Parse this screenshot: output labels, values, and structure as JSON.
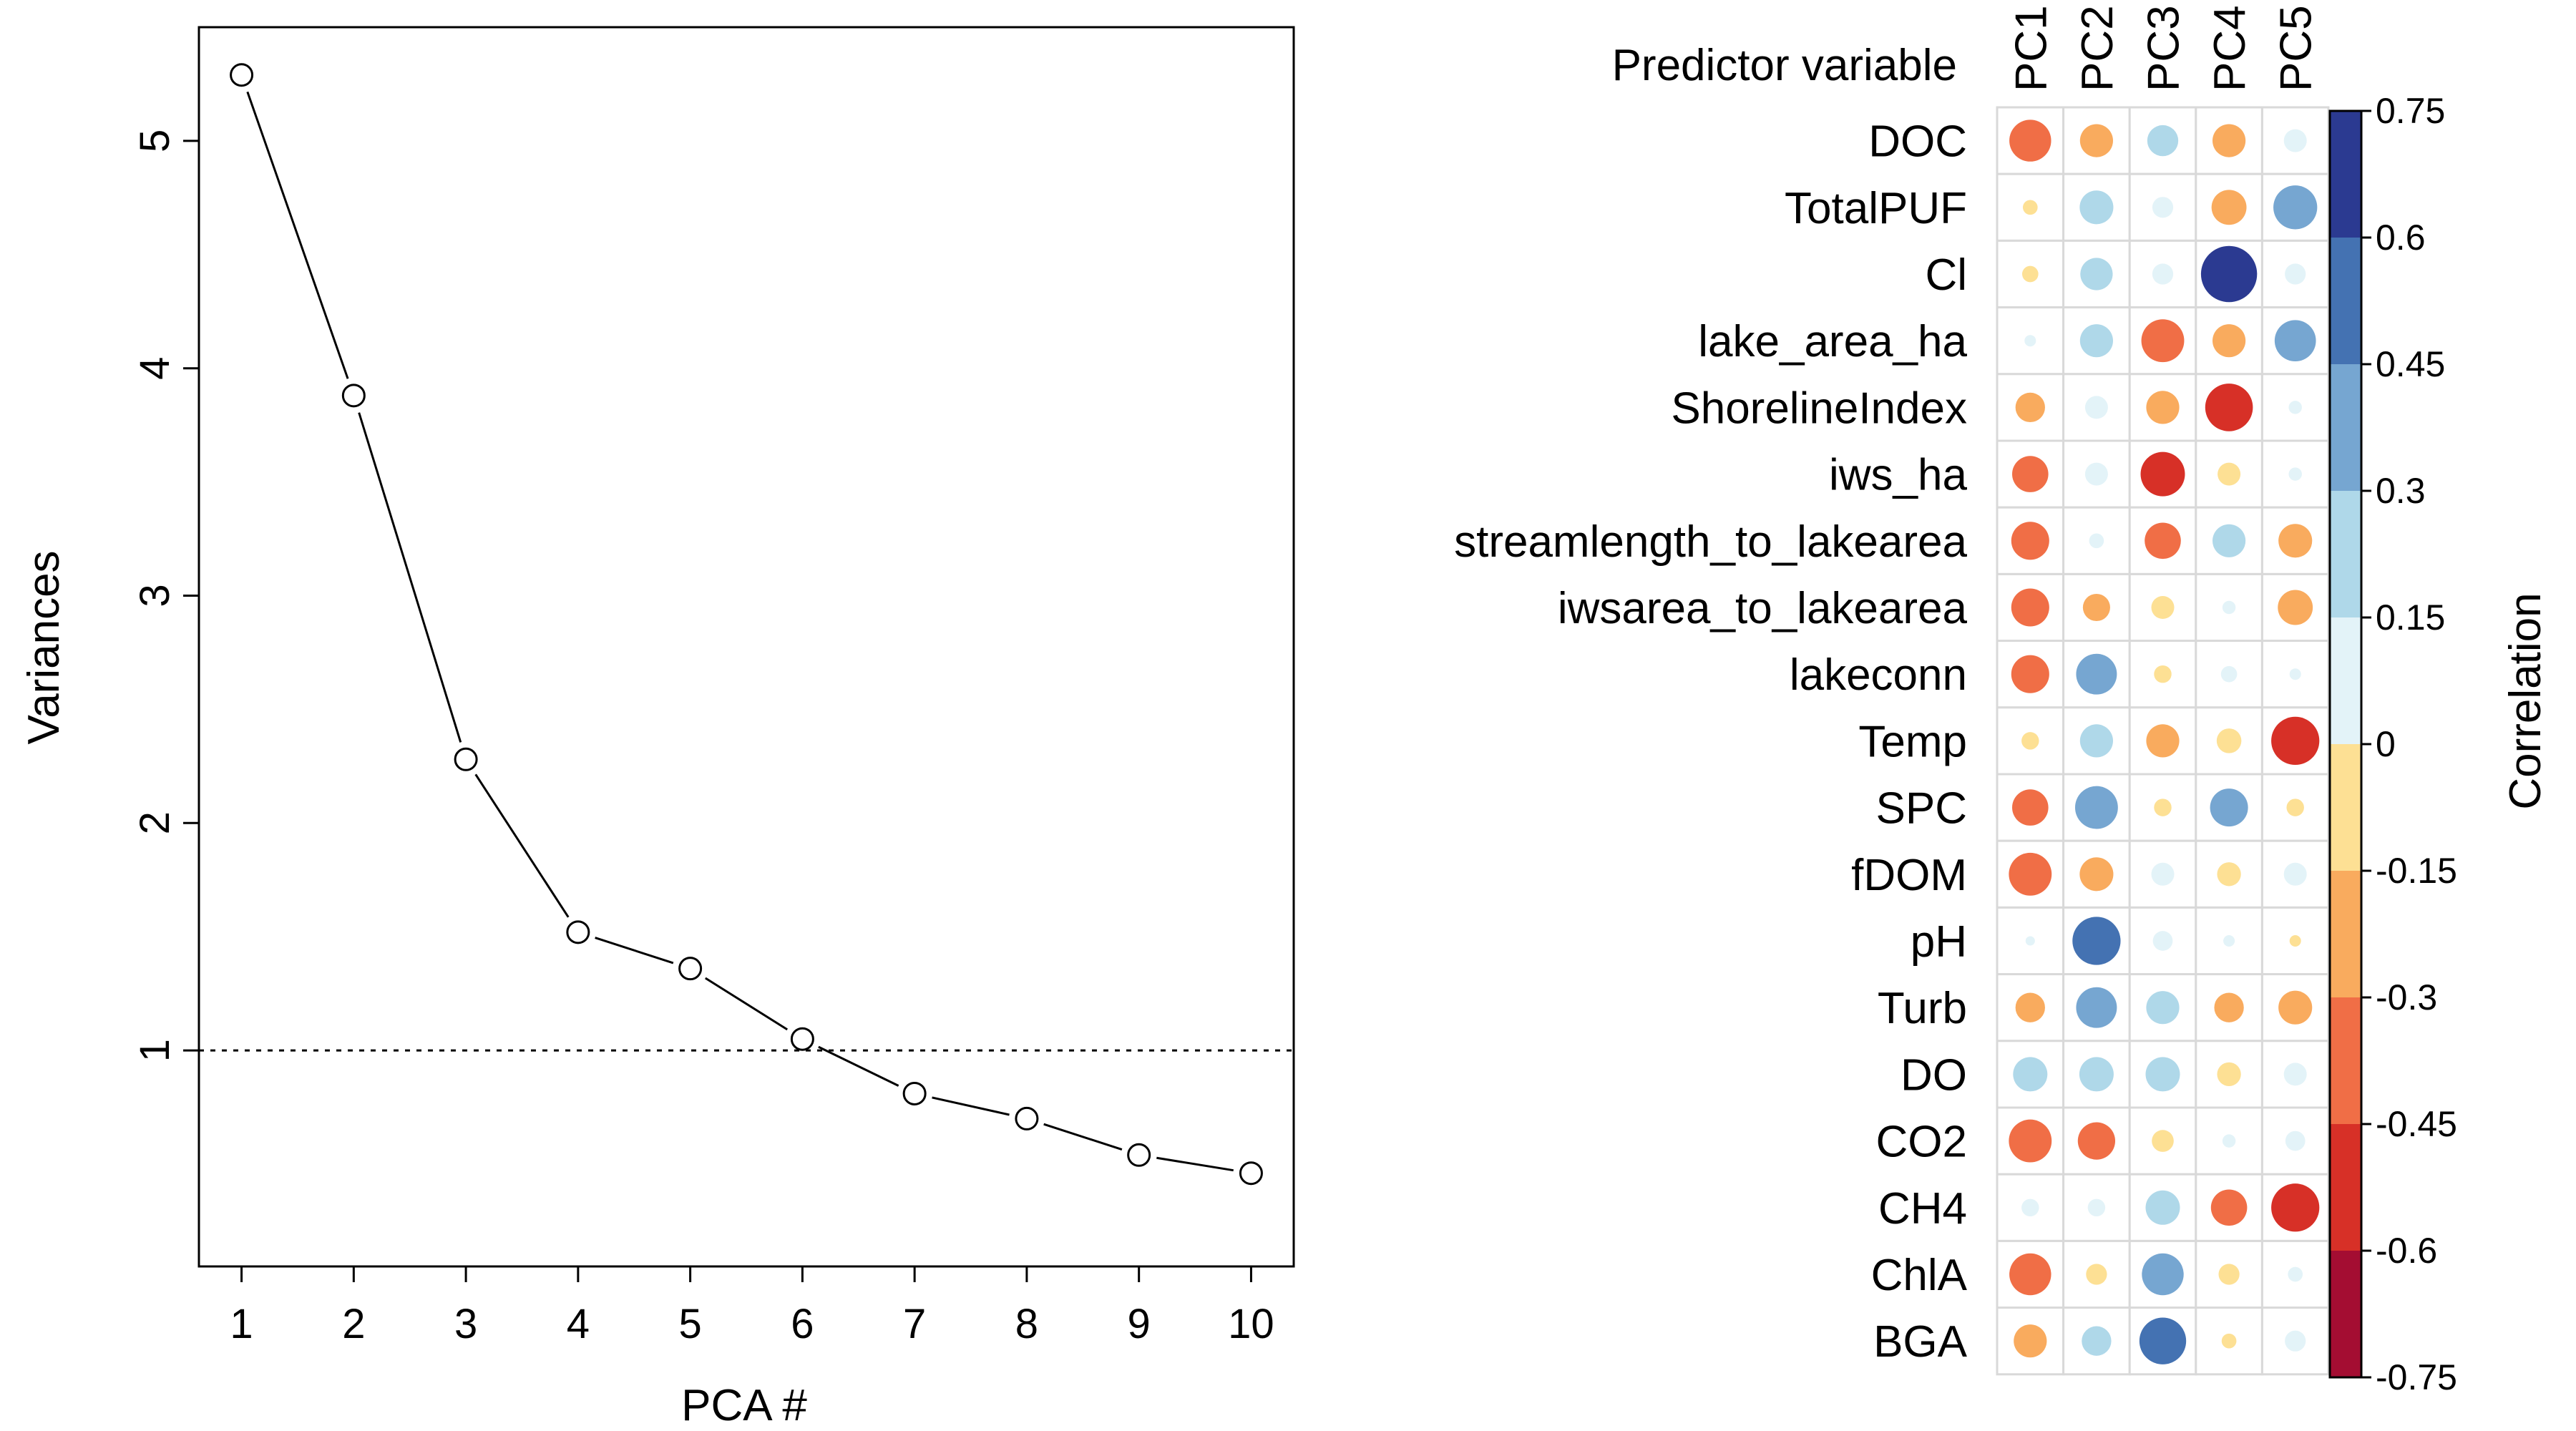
{
  "chart_data": [
    {
      "type": "line",
      "xlabel": "PCA #",
      "ylabel": "Variances",
      "x": [
        1,
        2,
        3,
        4,
        5,
        6,
        7,
        8,
        9,
        10
      ],
      "values": [
        5.29,
        3.88,
        2.28,
        1.52,
        1.36,
        1.05,
        0.81,
        0.7,
        0.54,
        0.46
      ],
      "reference_line": 1,
      "xlim": [
        0.62,
        10.38
      ],
      "ylim": [
        0.05,
        5.5
      ],
      "yticks": [
        1,
        2,
        3,
        4,
        5
      ],
      "xticks": [
        1,
        2,
        3,
        4,
        5,
        6,
        7,
        8,
        9,
        10
      ]
    },
    {
      "type": "heatmap",
      "corner_label": "Predictor variable",
      "legend_title": "Correlation",
      "columns": [
        "PC1",
        "PC2",
        "PC3",
        "PC4",
        "PC5"
      ],
      "rows": [
        "DOC",
        "TotalPUF",
        "Cl",
        "lake_area_ha",
        "ShorelineIndex",
        "iws_ha",
        "streamlength_to_lakearea",
        "iwsarea_to_lakearea",
        "lakeconn",
        "Temp",
        "SPC",
        "fDOM",
        "pH",
        "Turb",
        "DO",
        "CO2",
        "CH4",
        "ChlA",
        "BGA"
      ],
      "values": [
        [
          -0.4,
          -0.25,
          0.22,
          -0.25,
          0.12
        ],
        [
          -0.05,
          0.26,
          0.1,
          -0.28,
          0.44
        ],
        [
          -0.06,
          0.24,
          0.1,
          0.72,
          0.1
        ],
        [
          0.03,
          0.25,
          -0.42,
          -0.25,
          0.39
        ],
        [
          -0.2,
          0.12,
          -0.25,
          -0.52,
          0.04
        ],
        [
          -0.3,
          0.12,
          -0.45,
          -0.12,
          0.04
        ],
        [
          -0.33,
          0.05,
          -0.3,
          0.25,
          -0.26
        ],
        [
          -0.33,
          -0.17,
          -0.12,
          0.04,
          -0.28
        ],
        [
          -0.33,
          0.38,
          -0.07,
          0.06,
          0.03
        ],
        [
          -0.07,
          0.25,
          -0.25,
          -0.14,
          -0.53
        ],
        [
          -0.3,
          0.42,
          -0.07,
          0.33,
          -0.07
        ],
        [
          -0.42,
          -0.26,
          0.12,
          -0.13,
          0.12
        ],
        [
          0.02,
          0.53,
          0.09,
          0.03,
          -0.03
        ],
        [
          -0.2,
          0.38,
          0.25,
          -0.2,
          -0.26
        ],
        [
          0.27,
          0.27,
          0.27,
          -0.13,
          0.12
        ],
        [
          -0.42,
          -0.32,
          -0.11,
          0.04,
          0.09
        ],
        [
          0.07,
          0.07,
          0.27,
          -0.3,
          -0.53
        ],
        [
          -0.4,
          -0.1,
          0.4,
          -0.1,
          0.05
        ],
        [
          -0.25,
          0.2,
          0.5,
          -0.05,
          0.1
        ]
      ],
      "colorbar": {
        "min": -0.75,
        "max": 0.75,
        "ticks": [
          "0.75",
          "0.6",
          "0.45",
          "0.3",
          "0.15",
          "0",
          "-0.15",
          "-0.3",
          "-0.45",
          "-0.6",
          "-0.75"
        ],
        "colors": [
          "#2b3a91",
          "#4472b2",
          "#76a6d1",
          "#afd8e9",
          "#e3f3f8",
          "#fde094",
          "#f9ab5e",
          "#f06e46",
          "#d73027",
          "#a40d32"
        ]
      }
    }
  ]
}
